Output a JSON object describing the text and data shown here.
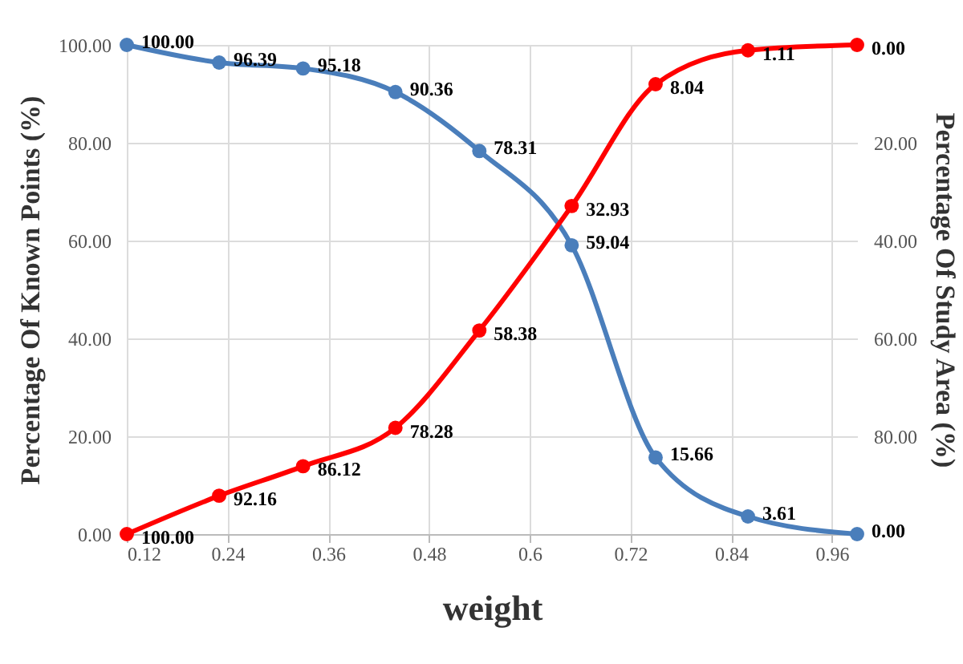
{
  "chart_data": {
    "type": "line",
    "xlabel": "weight",
    "ylabel": "Percentage Of Known Points (%)",
    "y2label": "Percentage Of Study Area (%)",
    "x": [
      0.12,
      0.23,
      0.33,
      0.44,
      0.54,
      0.65,
      0.75,
      0.86,
      0.99
    ],
    "series": [
      {
        "color": "#4a7ebb",
        "values": [
          100.0,
          96.39,
          95.18,
          90.36,
          78.31,
          59.04,
          15.66,
          3.61,
          0.0
        ],
        "value_labels": [
          "100.00",
          "96.39",
          "95.18",
          "90.36",
          "78.31",
          "59.04",
          "15.66",
          "3.61",
          "0.00"
        ]
      },
      {
        "color": "#ff0000",
        "axis": "y2",
        "values": [
          100.0,
          92.16,
          86.12,
          78.28,
          58.38,
          32.93,
          8.04,
          1.11,
          0.0
        ],
        "value_labels": [
          "100.00",
          "92.16",
          "86.12",
          "78.28",
          "58.38",
          "32.93",
          "8.04",
          "1.11",
          "0.00"
        ]
      }
    ],
    "xlim": [
      0.12,
      0.99
    ],
    "xticks": [
      0.12,
      0.24,
      0.36,
      0.48,
      0.6,
      0.72,
      0.84,
      0.96
    ],
    "ylim": [
      0,
      100
    ],
    "yticks": [
      {
        "value": 0,
        "label": "0.00"
      },
      {
        "value": 20,
        "label": "20.00"
      },
      {
        "value": 40,
        "label": "40.00"
      },
      {
        "value": 60,
        "label": "60.00"
      },
      {
        "value": 80,
        "label": "80.00"
      },
      {
        "value": 100,
        "label": "100.00"
      }
    ],
    "y2lim": [
      100,
      0
    ],
    "y2ticks": [
      {
        "value": 0,
        "label": null
      },
      {
        "value": 20,
        "label": "20.00"
      },
      {
        "value": 40,
        "label": "40.00"
      },
      {
        "value": 60,
        "label": "60.00"
      },
      {
        "value": 80,
        "label": "80.00"
      },
      {
        "value": 100,
        "label": null
      }
    ],
    "grid": true,
    "marker": "circle",
    "line_style": "solid"
  }
}
